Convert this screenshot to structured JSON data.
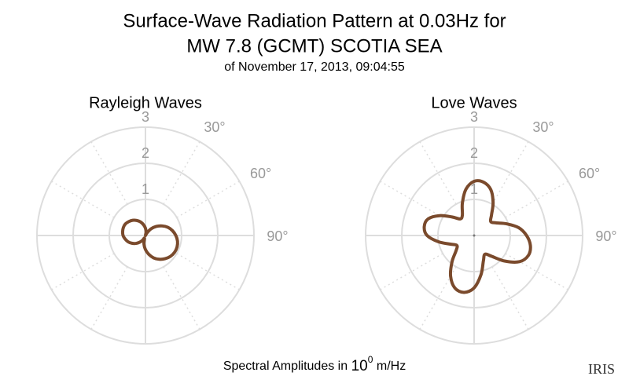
{
  "header": {
    "title_line1": "Surface-Wave Radiation Pattern at 0.03Hz for",
    "title_line2": "MW 7.8 (GCMT) SCOTIA SEA",
    "subtitle": "of November 17, 2013, 09:04:55"
  },
  "chart_data": [
    {
      "type": "polar",
      "title": "Rayleigh Waves",
      "x": [
        0,
        10,
        20,
        30,
        40,
        50,
        60,
        70,
        80,
        90,
        100,
        110,
        120,
        130,
        140,
        150,
        160,
        170,
        180,
        190,
        200,
        210,
        220,
        230,
        240,
        250,
        260,
        270,
        280,
        290,
        300,
        310,
        320,
        330,
        340,
        350
      ],
      "values": [
        0.2,
        0.09,
        0,
        0.08,
        0.24,
        0.39,
        0.53,
        0.66,
        0.76,
        0.84,
        0.9,
        0.93,
        0.93,
        0.9,
        0.84,
        0.76,
        0.66,
        0.53,
        0.39,
        0.24,
        0.08,
        0.14,
        0.24,
        0.34,
        0.43,
        0.51,
        0.57,
        0.62,
        0.64,
        0.65,
        0.64,
        0.6,
        0.55,
        0.48,
        0.4,
        0.3
      ],
      "color": "#7a4a2c",
      "rlim": [
        0,
        3
      ],
      "rticks": [
        1,
        2,
        3
      ],
      "thetaticks": [
        {
          "value": 30,
          "label": "30°"
        },
        {
          "value": 60,
          "label": "60°"
        },
        {
          "value": 90,
          "label": "90°"
        }
      ]
    },
    {
      "type": "polar",
      "title": "Love Waves",
      "x": [
        0,
        10,
        20,
        30,
        40,
        50,
        60,
        70,
        80,
        90,
        100,
        110,
        120,
        130,
        140,
        150,
        160,
        170,
        180,
        190,
        200,
        210,
        220,
        230,
        240,
        250,
        260,
        270,
        280,
        290,
        300,
        310,
        320,
        330,
        340,
        350
      ],
      "values": [
        1.5,
        1.5,
        1.35,
        1.05,
        0.75,
        0.6,
        0.7,
        0.95,
        1.25,
        1.45,
        1.58,
        1.6,
        1.45,
        1.1,
        0.75,
        0.6,
        0.75,
        1.1,
        1.45,
        1.6,
        1.55,
        1.3,
        0.95,
        0.65,
        0.55,
        0.7,
        1.0,
        1.3,
        1.4,
        1.35,
        1.1,
        0.8,
        0.6,
        0.65,
        0.95,
        1.3
      ],
      "color": "#7a4a2c",
      "rlim": [
        0,
        3
      ],
      "rticks": [
        1,
        2,
        3
      ],
      "thetaticks": [
        {
          "value": 30,
          "label": "30°"
        },
        {
          "value": 60,
          "label": "60°"
        },
        {
          "value": 90,
          "label": "90°"
        }
      ]
    }
  ],
  "footer": {
    "text": "Spectral Amplitudes in",
    "base": "10",
    "exponent": "0",
    "unit": "m/Hz"
  },
  "logo": "IRIS"
}
